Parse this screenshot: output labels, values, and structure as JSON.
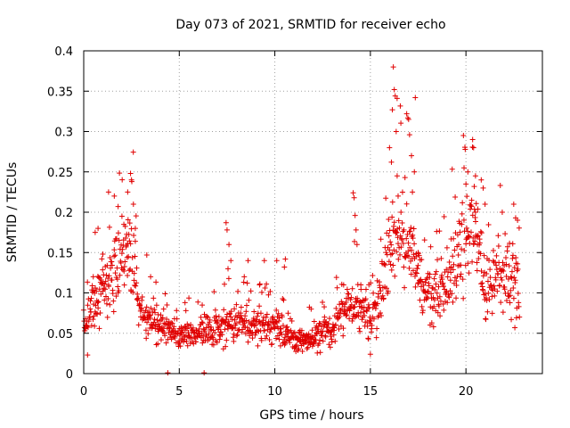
{
  "chart_data": {
    "type": "scatter",
    "title": "Day 073 of 2021, SRMTID for receiver echo",
    "xlabel": "GPS time / hours",
    "ylabel": "SRMTID / TECUs",
    "xlim": [
      0,
      24
    ],
    "ylim": [
      0,
      0.4
    ],
    "x_ticks": [
      0,
      5,
      10,
      15,
      20
    ],
    "x_tick_labels": [
      "0",
      "5",
      "10",
      "15",
      "20"
    ],
    "y_ticks": [
      0,
      0.05,
      0.1,
      0.15,
      0.2,
      0.25,
      0.3,
      0.35,
      0.4
    ],
    "y_tick_labels": [
      "0",
      "0.05",
      "0.1",
      "0.15",
      "0.2",
      "0.25",
      "0.3",
      "0.35",
      "0.4"
    ],
    "grid": true,
    "marker": "plus",
    "series": [
      {
        "name": "receiver echo",
        "color": "#e00000",
        "profile": [
          [
            0.0,
            0.055
          ],
          [
            0.5,
            0.085
          ],
          [
            1.0,
            0.11
          ],
          [
            1.5,
            0.12
          ],
          [
            2.0,
            0.14
          ],
          [
            2.5,
            0.165
          ],
          [
            3.0,
            0.07
          ],
          [
            3.5,
            0.07
          ],
          [
            4.0,
            0.055
          ],
          [
            4.5,
            0.05
          ],
          [
            5.0,
            0.048
          ],
          [
            6.0,
            0.05
          ],
          [
            7.0,
            0.055
          ],
          [
            7.5,
            0.06
          ],
          [
            8.0,
            0.065
          ],
          [
            9.0,
            0.06
          ],
          [
            10.0,
            0.06
          ],
          [
            10.5,
            0.05
          ],
          [
            11.0,
            0.042
          ],
          [
            12.0,
            0.045
          ],
          [
            13.0,
            0.055
          ],
          [
            14.0,
            0.085
          ],
          [
            14.5,
            0.085
          ],
          [
            15.0,
            0.06
          ],
          [
            15.5,
            0.1
          ],
          [
            16.0,
            0.15
          ],
          [
            16.5,
            0.18
          ],
          [
            17.0,
            0.17
          ],
          [
            17.5,
            0.12
          ],
          [
            18.0,
            0.1
          ],
          [
            18.5,
            0.09
          ],
          [
            19.0,
            0.11
          ],
          [
            19.5,
            0.14
          ],
          [
            20.0,
            0.165
          ],
          [
            20.5,
            0.17
          ],
          [
            21.0,
            0.11
          ],
          [
            21.5,
            0.12
          ],
          [
            22.0,
            0.13
          ],
          [
            22.5,
            0.12
          ],
          [
            22.8,
            0.09
          ]
        ],
        "points": [
          [
            0.1,
            0.06
          ],
          [
            0.2,
            0.023
          ],
          [
            0.35,
            0.09
          ],
          [
            0.5,
            0.12
          ],
          [
            0.6,
            0.175
          ],
          [
            0.75,
            0.18
          ],
          [
            1.0,
            0.148
          ],
          [
            1.3,
            0.225
          ],
          [
            1.6,
            0.22
          ],
          [
            1.8,
            0.207
          ],
          [
            2.0,
            0.195
          ],
          [
            2.1,
            0.185
          ],
          [
            2.3,
            0.225
          ],
          [
            2.45,
            0.248
          ],
          [
            2.5,
            0.24
          ],
          [
            2.6,
            0.21
          ],
          [
            2.7,
            0.18
          ],
          [
            3.3,
            0.147
          ],
          [
            3.5,
            0.12
          ],
          [
            3.9,
            0.073
          ],
          [
            4.4,
            0.001
          ],
          [
            6.3,
            0.001
          ],
          [
            5.3,
            0.088
          ],
          [
            6.2,
            0.085
          ],
          [
            7.45,
            0.187
          ],
          [
            7.5,
            0.178
          ],
          [
            7.6,
            0.16
          ],
          [
            7.7,
            0.14
          ],
          [
            7.55,
            0.13
          ],
          [
            8.4,
            0.12
          ],
          [
            8.6,
            0.14
          ],
          [
            9.2,
            0.11
          ],
          [
            9.45,
            0.14
          ],
          [
            10.1,
            0.14
          ],
          [
            10.55,
            0.142
          ],
          [
            10.5,
            0.132
          ],
          [
            11.9,
            0.08
          ],
          [
            12.6,
            0.07
          ],
          [
            13.6,
            0.11
          ],
          [
            14.1,
            0.224
          ],
          [
            14.15,
            0.218
          ],
          [
            14.2,
            0.196
          ],
          [
            14.25,
            0.178
          ],
          [
            14.3,
            0.16
          ],
          [
            14.5,
            0.11
          ],
          [
            14.9,
            0.043
          ],
          [
            15.0,
            0.024
          ],
          [
            16.0,
            0.28
          ],
          [
            16.2,
            0.38
          ],
          [
            16.25,
            0.352
          ],
          [
            16.3,
            0.344
          ],
          [
            16.15,
            0.327
          ],
          [
            16.35,
            0.3
          ],
          [
            16.1,
            0.262
          ],
          [
            16.4,
            0.245
          ],
          [
            16.45,
            0.22
          ],
          [
            16.6,
            0.2
          ],
          [
            16.9,
            0.322
          ],
          [
            17.0,
            0.315
          ],
          [
            17.05,
            0.296
          ],
          [
            17.15,
            0.27
          ],
          [
            17.3,
            0.25
          ],
          [
            17.2,
            0.225
          ],
          [
            17.35,
            0.342
          ],
          [
            17.5,
            0.15
          ],
          [
            19.9,
            0.255
          ],
          [
            20.0,
            0.235
          ],
          [
            20.1,
            0.25
          ],
          [
            20.35,
            0.29
          ],
          [
            20.4,
            0.28
          ],
          [
            20.5,
            0.245
          ],
          [
            20.8,
            0.24
          ],
          [
            20.9,
            0.23
          ],
          [
            21.0,
            0.21
          ],
          [
            20.5,
            0.2
          ],
          [
            22.5,
            0.21
          ],
          [
            22.6,
            0.193
          ],
          [
            22.7,
            0.19
          ],
          [
            22.8,
            0.07
          ],
          [
            20.6,
            0.16
          ],
          [
            21.9,
            0.2
          ]
        ]
      }
    ]
  }
}
